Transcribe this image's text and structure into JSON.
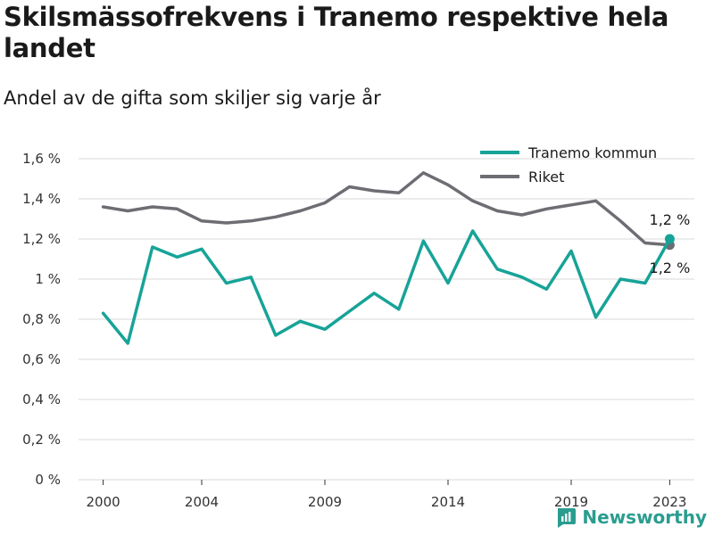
{
  "header": {
    "title": "Skilsmässofrekvens i Tranemo respektive hela landet",
    "subtitle": "Andel av de gifta som skiljer sig varje år"
  },
  "brand": {
    "name": "Newsworthy",
    "icon": "newsworthy-logo-icon"
  },
  "colors": {
    "tranemo": "#17a398",
    "riket": "#6e6d73",
    "grid": "#d9d9d9"
  },
  "chart_data": {
    "type": "line",
    "title": "Skilsmässofrekvens i Tranemo respektive hela landet",
    "subtitle": "Andel av de gifta som skiljer sig varje år",
    "x": [
      2000,
      2001,
      2002,
      2003,
      2004,
      2005,
      2006,
      2007,
      2008,
      2009,
      2010,
      2011,
      2012,
      2013,
      2014,
      2015,
      2016,
      2017,
      2018,
      2019,
      2020,
      2021,
      2022,
      2023
    ],
    "xlim": [
      1999,
      2024
    ],
    "x_ticks": [
      {
        "value": 2000,
        "label": "2000"
      },
      {
        "value": 2004,
        "label": "2004"
      },
      {
        "value": 2009,
        "label": "2009"
      },
      {
        "value": 2014,
        "label": "2014"
      },
      {
        "value": 2019,
        "label": "2019"
      },
      {
        "value": 2023,
        "label": "2023"
      }
    ],
    "ylim": [
      0,
      1.6
    ],
    "y_ticks": [
      {
        "value": 0,
        "label": "0 %"
      },
      {
        "value": 0.2,
        "label": "0,2 %"
      },
      {
        "value": 0.4,
        "label": "0,4 %"
      },
      {
        "value": 0.6,
        "label": "0,6 %"
      },
      {
        "value": 0.8,
        "label": "0,8 %"
      },
      {
        "value": 1.0,
        "label": "1 %"
      },
      {
        "value": 1.2,
        "label": "1,2 %"
      },
      {
        "value": 1.4,
        "label": "1,4 %"
      },
      {
        "value": 1.6,
        "label": "1,6 %"
      }
    ],
    "grid": true,
    "legend": "top-right",
    "series": [
      {
        "name": "Tranemo kommun",
        "color": "#17a398",
        "values": [
          0.83,
          0.68,
          1.16,
          1.11,
          1.15,
          0.98,
          1.01,
          0.72,
          0.79,
          0.75,
          0.84,
          0.93,
          0.85,
          1.19,
          0.98,
          1.24,
          1.05,
          1.01,
          0.95,
          1.14,
          0.81,
          1.0,
          0.98,
          1.2
        ],
        "end_label": "1,2 %"
      },
      {
        "name": "Riket",
        "color": "#6e6d73",
        "values": [
          1.36,
          1.34,
          1.36,
          1.35,
          1.29,
          1.28,
          1.29,
          1.31,
          1.34,
          1.38,
          1.46,
          1.44,
          1.43,
          1.53,
          1.47,
          1.39,
          1.34,
          1.32,
          1.35,
          1.37,
          1.39,
          1.29,
          1.18,
          1.17
        ],
        "end_label": "1,2 %"
      }
    ]
  }
}
